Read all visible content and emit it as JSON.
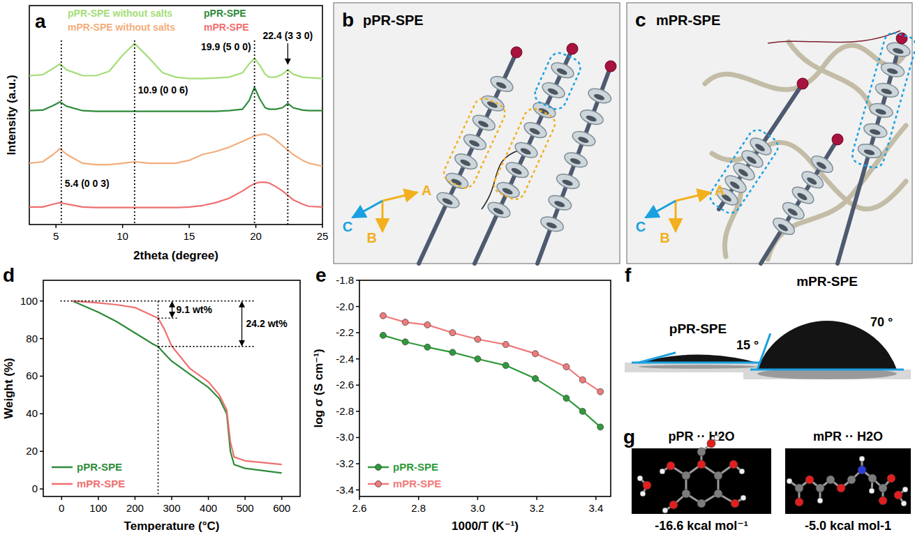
{
  "chart_data": [
    {
      "panel_label": "a",
      "type": "line",
      "x_label": "2theta (degree)",
      "y_label": "Intensity (a.u.)",
      "x": [
        3,
        4,
        4.8,
        5.3,
        5.8,
        7,
        8,
        9,
        10,
        10.9,
        12,
        13,
        14,
        15,
        16,
        17,
        18,
        19,
        19.5,
        19.9,
        20.3,
        20.7,
        21,
        21.5,
        22,
        22.4,
        22.8,
        23.5,
        24,
        25
      ],
      "series": [
        {
          "name": "pPR-SPE without salts",
          "color": "#a5dd78",
          "values": [
            86,
            86.3,
            88.5,
            90,
            88,
            86,
            86,
            87.5,
            93,
            97,
            92,
            87,
            85.5,
            85,
            85,
            85.2,
            85.5,
            87,
            90,
            92,
            89.5,
            86.5,
            85.5,
            85.5,
            86.5,
            88,
            86.5,
            85.5,
            85.3,
            85
          ]
        },
        {
          "name": "pPR-SPE",
          "color": "#2e8b3a",
          "values": [
            74,
            74.2,
            75.8,
            77,
            75.5,
            74,
            73.8,
            73.8,
            73.8,
            73.8,
            73.8,
            73.8,
            73.8,
            73.8,
            73.8,
            73.8,
            74,
            74.5,
            77.5,
            82,
            78,
            75,
            74.5,
            74.5,
            75,
            76.5,
            75,
            74.2,
            74,
            74
          ]
        },
        {
          "name": "mPR-SPE without salts",
          "color": "#f3ad7c",
          "values": [
            56,
            56.5,
            59,
            61,
            59,
            56,
            55.5,
            55.5,
            56,
            56.5,
            56,
            56,
            56,
            57,
            59,
            60,
            61.5,
            63.5,
            64.5,
            65.3,
            65.8,
            66,
            65.5,
            64,
            62,
            60.5,
            59,
            57,
            56,
            55
          ]
        },
        {
          "name": "mPR-SPE",
          "color": "#ef6f6f",
          "values": [
            41,
            41,
            42,
            42.5,
            42,
            41,
            40.8,
            40.8,
            40.8,
            40.8,
            40.8,
            40.8,
            40.8,
            41,
            41.5,
            42.5,
            44,
            46.5,
            48,
            49,
            49.5,
            49.5,
            49.2,
            48,
            46.5,
            45,
            43.5,
            42,
            41.2,
            41
          ]
        }
      ],
      "xlim": [
        3,
        25
      ],
      "xticks": [
        5,
        10,
        15,
        20,
        25
      ],
      "ylim": [
        35,
        110
      ],
      "yticks": [],
      "tick_labels": "x",
      "legend": "top-left",
      "annotations": [
        {
          "text": "5.4 (0 0 3)",
          "x": 5.4
        },
        {
          "text": "10.9 (0 0 6)",
          "x": 10.9
        },
        {
          "text": "19.9 (5 0 0)",
          "x": 19.9
        },
        {
          "text": "22.4 (3 3 0)",
          "x": 22.4
        }
      ]
    },
    {
      "panel_label": "d",
      "type": "line",
      "x_label": "Temperature (°C)",
      "y_label": "Weight (%)",
      "x": [
        30,
        100,
        150,
        200,
        250,
        263,
        280,
        300,
        350,
        400,
        430,
        450,
        460,
        470,
        500,
        600
      ],
      "series": [
        {
          "name": "pPR-SPE",
          "color": "#2e8b3a",
          "values": [
            100,
            94,
            89,
            83,
            77,
            75.8,
            72,
            68,
            61,
            54,
            48,
            40,
            20,
            13,
            11,
            8.5
          ]
        },
        {
          "name": "mPR-SPE",
          "color": "#ef6f6f",
          "values": [
            100,
            99,
            98,
            96.5,
            92,
            90.9,
            85,
            76,
            64,
            57,
            50,
            42,
            25,
            17,
            15,
            13
          ]
        }
      ],
      "xlim": [
        -50,
        650
      ],
      "xticks": [
        0,
        100,
        200,
        300,
        400,
        500,
        600
      ],
      "ylim": [
        -4,
        111
      ],
      "yticks": [
        0,
        20,
        40,
        60,
        80,
        100
      ],
      "legend": "bottom-left",
      "guides": {
        "x": 263,
        "y": [
          100,
          90.9,
          75.8
        ]
      },
      "annotations": [
        {
          "text": "9.1 wt%",
          "from": 100,
          "to": 90.9
        },
        {
          "text": "24.2 wt%",
          "from": 100,
          "to": 75.8
        }
      ]
    },
    {
      "panel_label": "e",
      "type": "line",
      "marker": "circle",
      "x_label": "1000/T (K⁻¹)",
      "y_label": "log σ (S cm⁻¹)",
      "x": [
        2.68,
        2.755,
        2.83,
        2.915,
        3.0,
        3.095,
        3.195,
        3.3,
        3.355,
        3.415
      ],
      "series": [
        {
          "name": "pPR-SPE",
          "color": "#2e9a3a",
          "values": [
            -2.22,
            -2.27,
            -2.31,
            -2.35,
            -2.4,
            -2.45,
            -2.55,
            -2.7,
            -2.8,
            -2.92
          ]
        },
        {
          "name": "mPR-SPE",
          "color": "#f07a7a",
          "values": [
            -2.07,
            -2.12,
            -2.14,
            -2.2,
            -2.25,
            -2.29,
            -2.36,
            -2.46,
            -2.56,
            -2.65
          ]
        }
      ],
      "xlim": [
        2.6,
        3.45
      ],
      "xticks": [
        2.6,
        2.8,
        {
          "value": 3,
          "label": "3.0"
        },
        3.2,
        3.4
      ],
      "ylim": [
        -3.45,
        -1.8
      ],
      "yticks": [
        -3.4,
        -3.2,
        {
          "value": -3,
          "label": "-3.0"
        },
        -2.8,
        -2.6,
        -2.4,
        -2.2,
        {
          "value": -2,
          "label": "-2.0"
        },
        -1.8
      ],
      "legend": "bottom-left"
    }
  ],
  "diagrams": [
    {
      "panel_label": "b",
      "title": "pPR-SPE",
      "axes": [
        "A",
        "B",
        "C"
      ]
    },
    {
      "panel_label": "c",
      "title": "mPR-SPE",
      "axes": [
        "A",
        "B",
        "C"
      ]
    }
  ],
  "contact_angles": {
    "panel_label": "f",
    "drops": [
      {
        "name": "pPR-SPE",
        "angle": {
          "value": 15,
          "label": "15 °"
        }
      },
      {
        "name": "mPR-SPE",
        "angle": {
          "value": 70,
          "label": "70 °"
        }
      }
    ]
  },
  "binding_energies": {
    "panel_label": "g",
    "items": [
      {
        "title": "pPR ·· H2O",
        "energy": "-16.6 kcal mol⁻¹"
      },
      {
        "title": "mPR ·· H2O",
        "energy": "-5.0 kcal mol-1"
      }
    ]
  }
}
